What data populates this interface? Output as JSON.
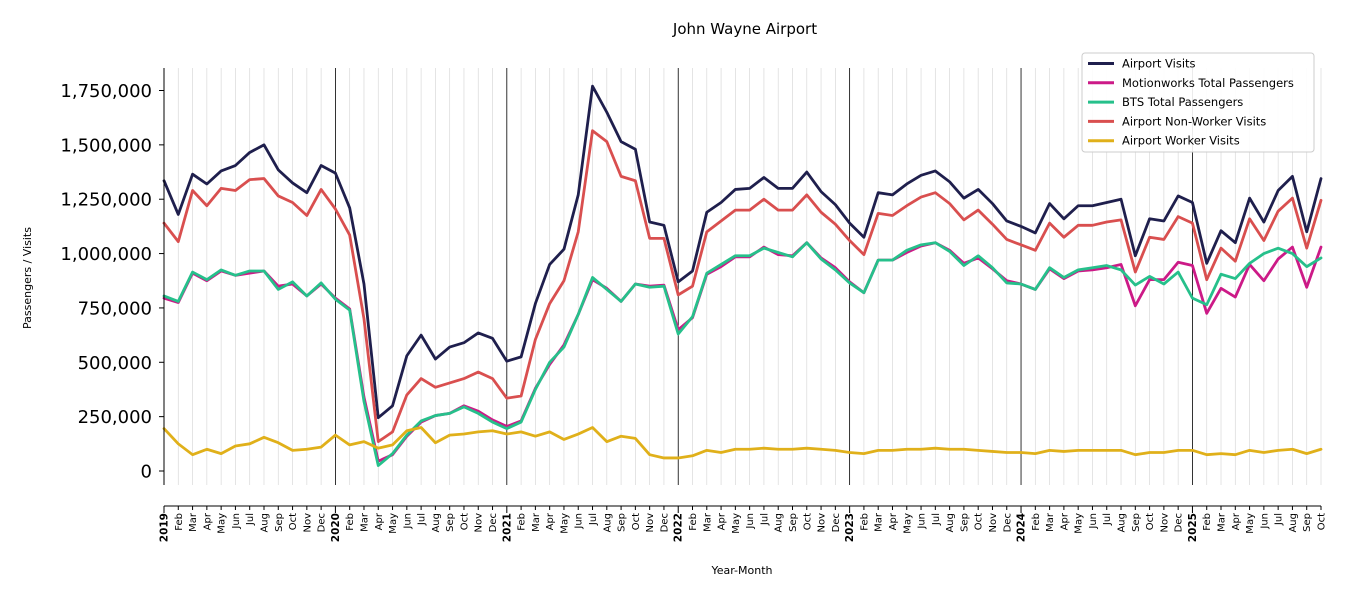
{
  "chart_data": {
    "type": "line",
    "title": "John Wayne Airport",
    "xlabel": "Year-Month",
    "ylabel": "Passengers / Visits",
    "ylim": [
      -60000,
      1850000
    ],
    "yticks": [
      0,
      250000,
      500000,
      750000,
      1000000,
      1250000,
      1500000,
      1750000
    ],
    "ytick_labels": [
      "0",
      "250,000",
      "500,000",
      "750,000",
      "1,000,000",
      "1,250,000",
      "1,500,000",
      "1,750,000"
    ],
    "legend_position": "top-right",
    "grid": "vertical monthly gridlines, darker line at each January",
    "x": [
      "2019",
      "Feb",
      "Mar",
      "Apr",
      "May",
      "Jun",
      "Jul",
      "Aug",
      "Sep",
      "Oct",
      "Nov",
      "Dec",
      "2020",
      "Feb",
      "Mar",
      "Apr",
      "May",
      "Jun",
      "Jul",
      "Aug",
      "Sep",
      "Oct",
      "Nov",
      "Dec",
      "2021",
      "Feb",
      "Mar",
      "Apr",
      "May",
      "Jun",
      "Jul",
      "Aug",
      "Sep",
      "Oct",
      "Nov",
      "Dec",
      "2022",
      "Feb",
      "Mar",
      "Apr",
      "May",
      "Jun",
      "Jul",
      "Aug",
      "Sep",
      "Oct",
      "Nov",
      "Dec",
      "2023",
      "Feb",
      "Mar",
      "Apr",
      "May",
      "Jun",
      "Jul",
      "Aug",
      "Sep",
      "Oct",
      "Nov",
      "Dec",
      "2024",
      "Feb",
      "Mar",
      "Apr",
      "May",
      "Jun",
      "Jul",
      "Aug",
      "Sep",
      "Oct",
      "Nov",
      "Dec",
      "2025",
      "Feb",
      "Mar",
      "Apr",
      "May",
      "Jun",
      "Jul",
      "Aug",
      "Sep",
      "Oct"
    ],
    "series": [
      {
        "name": "Airport Visits",
        "color": "#1f1f4d",
        "values": [
          1335000,
          1180000,
          1365000,
          1320000,
          1380000,
          1405000,
          1465000,
          1500000,
          1385000,
          1325000,
          1280000,
          1405000,
          1370000,
          1210000,
          860000,
          245000,
          300000,
          530000,
          625000,
          515000,
          570000,
          590000,
          635000,
          610000,
          505000,
          525000,
          770000,
          950000,
          1020000,
          1270000,
          1770000,
          1650000,
          1515000,
          1480000,
          1145000,
          1130000,
          870000,
          920000,
          1190000,
          1235000,
          1295000,
          1300000,
          1350000,
          1300000,
          1300000,
          1375000,
          1285000,
          1225000,
          1140000,
          1075000,
          1280000,
          1270000,
          1320000,
          1360000,
          1380000,
          1330000,
          1255000,
          1295000,
          1230000,
          1150000,
          1125000,
          1095000,
          1230000,
          1160000,
          1220000,
          1220000,
          1235000,
          1250000,
          990000,
          1160000,
          1150000,
          1265000,
          1235000,
          955000,
          1105000,
          1050000,
          1255000,
          1145000,
          1290000,
          1355000,
          1100000,
          1345000
        ]
      },
      {
        "name": "Motionworks Total Passengers",
        "color": "#cc1a87",
        "values": [
          795000,
          775000,
          910000,
          875000,
          920000,
          900000,
          910000,
          920000,
          850000,
          860000,
          805000,
          860000,
          795000,
          745000,
          340000,
          45000,
          75000,
          160000,
          225000,
          255000,
          265000,
          300000,
          275000,
          235000,
          205000,
          230000,
          380000,
          490000,
          580000,
          720000,
          880000,
          840000,
          780000,
          860000,
          850000,
          855000,
          650000,
          705000,
          905000,
          940000,
          985000,
          985000,
          1030000,
          995000,
          990000,
          1050000,
          980000,
          935000,
          870000,
          820000,
          970000,
          970000,
          1005000,
          1035000,
          1050000,
          1015000,
          955000,
          980000,
          930000,
          875000,
          860000,
          835000,
          930000,
          885000,
          920000,
          925000,
          935000,
          950000,
          760000,
          880000,
          880000,
          960000,
          945000,
          725000,
          840000,
          800000,
          950000,
          875000,
          975000,
          1030000,
          845000,
          1030000
        ]
      },
      {
        "name": "BTS Total Passengers",
        "color": "#26c08b",
        "values": [
          805000,
          780000,
          915000,
          880000,
          925000,
          900000,
          920000,
          920000,
          835000,
          870000,
          805000,
          865000,
          790000,
          740000,
          320000,
          25000,
          80000,
          165000,
          230000,
          255000,
          265000,
          295000,
          265000,
          225000,
          195000,
          225000,
          375000,
          500000,
          570000,
          720000,
          890000,
          835000,
          780000,
          860000,
          845000,
          850000,
          630000,
          710000,
          910000,
          950000,
          990000,
          990000,
          1025000,
          1005000,
          985000,
          1050000,
          975000,
          925000,
          865000,
          820000,
          970000,
          970000,
          1015000,
          1040000,
          1050000,
          1010000,
          945000,
          990000,
          935000,
          865000,
          860000,
          835000,
          935000,
          890000,
          925000,
          935000,
          945000,
          925000,
          855000,
          895000,
          860000,
          915000,
          795000,
          765000,
          905000,
          885000,
          955000,
          1000000,
          1025000,
          1000000,
          940000,
          980000
        ]
      },
      {
        "name": "Airport Non-Worker Visits",
        "color": "#d94f4f",
        "values": [
          1140000,
          1055000,
          1290000,
          1220000,
          1300000,
          1290000,
          1340000,
          1345000,
          1265000,
          1235000,
          1175000,
          1295000,
          1205000,
          1085000,
          700000,
          135000,
          180000,
          350000,
          425000,
          385000,
          405000,
          425000,
          455000,
          425000,
          335000,
          345000,
          605000,
          770000,
          875000,
          1100000,
          1565000,
          1515000,
          1355000,
          1335000,
          1070000,
          1070000,
          810000,
          850000,
          1100000,
          1150000,
          1200000,
          1200000,
          1250000,
          1200000,
          1200000,
          1270000,
          1190000,
          1135000,
          1060000,
          995000,
          1185000,
          1175000,
          1220000,
          1260000,
          1280000,
          1230000,
          1155000,
          1200000,
          1135000,
          1065000,
          1040000,
          1015000,
          1140000,
          1075000,
          1130000,
          1130000,
          1145000,
          1155000,
          915000,
          1075000,
          1065000,
          1170000,
          1140000,
          880000,
          1025000,
          965000,
          1160000,
          1060000,
          1195000,
          1255000,
          1025000,
          1245000
        ]
      },
      {
        "name": "Airport Worker Visits",
        "color": "#e0b01a",
        "values": [
          195000,
          125000,
          75000,
          100000,
          80000,
          115000,
          125000,
          155000,
          130000,
          95000,
          100000,
          110000,
          165000,
          120000,
          135000,
          105000,
          120000,
          185000,
          200000,
          130000,
          165000,
          170000,
          180000,
          185000,
          170000,
          180000,
          160000,
          180000,
          145000,
          170000,
          200000,
          135000,
          160000,
          150000,
          75000,
          60000,
          60000,
          70000,
          95000,
          85000,
          100000,
          100000,
          105000,
          100000,
          100000,
          105000,
          100000,
          95000,
          85000,
          80000,
          95000,
          95000,
          100000,
          100000,
          105000,
          100000,
          100000,
          95000,
          90000,
          85000,
          85000,
          80000,
          95000,
          90000,
          95000,
          95000,
          95000,
          95000,
          75000,
          85000,
          85000,
          95000,
          95000,
          75000,
          80000,
          75000,
          95000,
          85000,
          95000,
          100000,
          80000,
          100000
        ]
      }
    ]
  }
}
